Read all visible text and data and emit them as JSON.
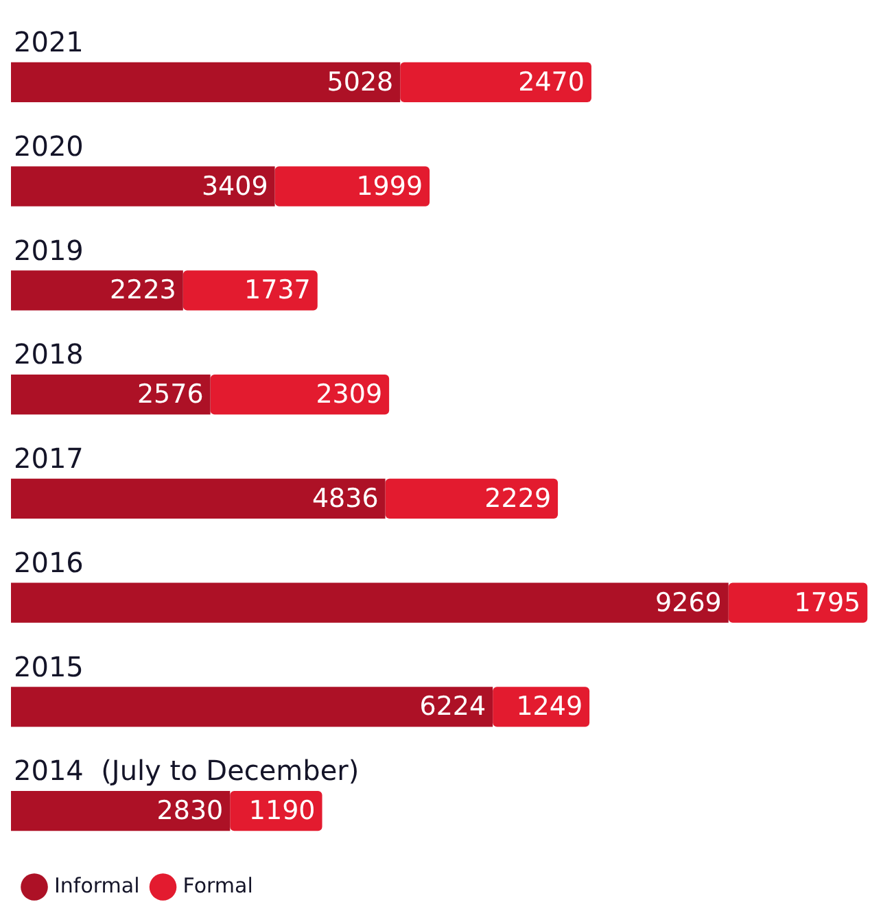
{
  "chart_data": {
    "type": "bar",
    "orientation": "horizontal",
    "stacked": true,
    "categories": [
      "2021",
      "2020",
      "2019",
      "2018",
      "2017",
      "2016",
      "2015",
      "2014  (July to December)"
    ],
    "series": [
      {
        "name": "Informal",
        "color": "#ad1126",
        "values": [
          5028,
          3409,
          2223,
          2576,
          4836,
          9269,
          6224,
          2830
        ]
      },
      {
        "name": "Formal",
        "color": "#e31b2f",
        "values": [
          2470,
          1999,
          1737,
          2309,
          2229,
          1795,
          1249,
          1190
        ]
      }
    ],
    "data_labels": true,
    "legend": "bottom left"
  }
}
